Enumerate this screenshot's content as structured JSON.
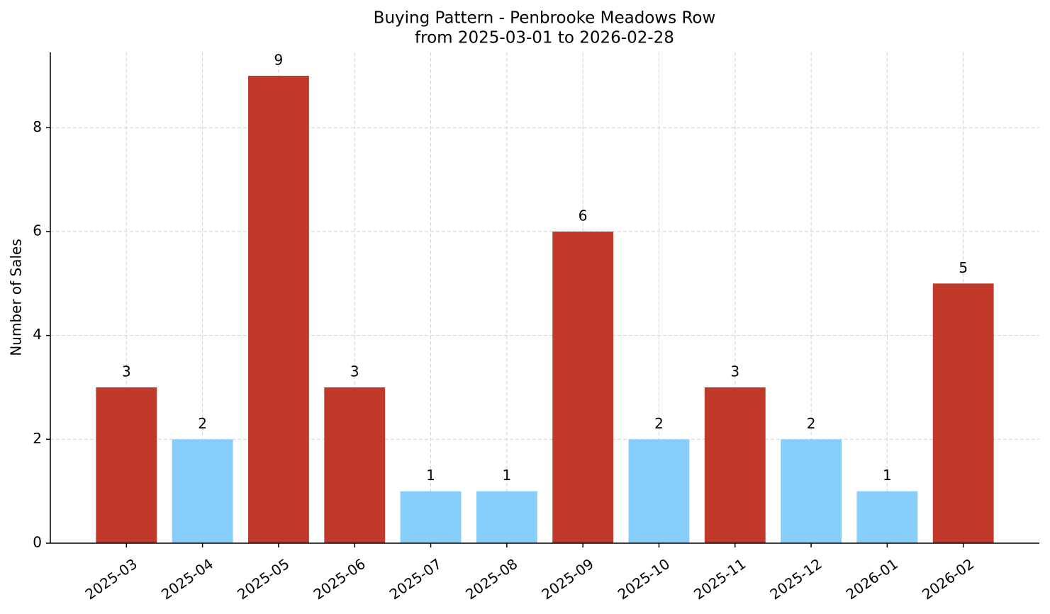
{
  "chart_data": {
    "type": "bar",
    "title": "Buying Pattern - Penbrooke Meadows Row",
    "subtitle": "from 2025-03-01 to 2026-02-28",
    "y_label": "Number of Sales",
    "categories": [
      "2025-03",
      "2025-04",
      "2025-05",
      "2025-06",
      "2025-07",
      "2025-08",
      "2025-09",
      "2025-10",
      "2025-11",
      "2025-12",
      "2026-01",
      "2026-02"
    ],
    "values": [
      3,
      2,
      9,
      3,
      1,
      1,
      6,
      2,
      3,
      2,
      1,
      5
    ],
    "colors": [
      "#c0392b",
      "#87cefa",
      "#c0392b",
      "#c0392b",
      "#87cefa",
      "#87cefa",
      "#c0392b",
      "#87cefa",
      "#c0392b",
      "#87cefa",
      "#87cefa",
      "#c0392b"
    ],
    "ylim": [
      0,
      9.45
    ],
    "yticks": [
      0,
      2,
      4,
      6,
      8
    ],
    "grid": true
  }
}
